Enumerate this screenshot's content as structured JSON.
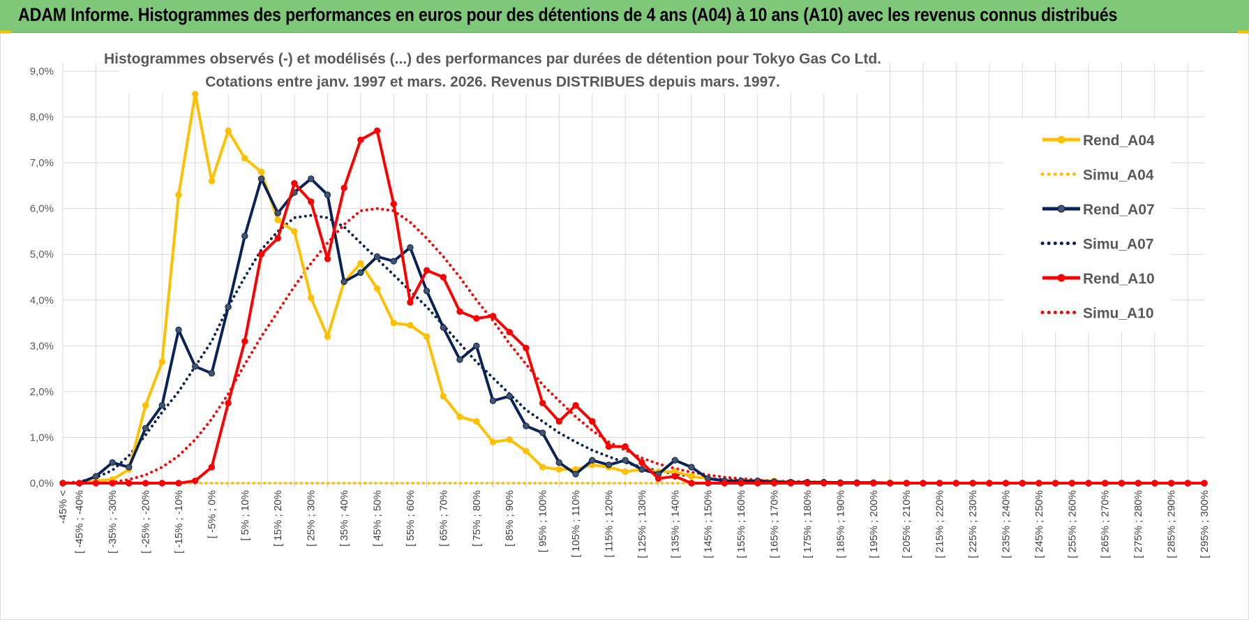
{
  "banner": {
    "title": "ADAM Informe. Histogrammes des performances en euros pour des détentions de 4 ans (A04) à 10 ans (A10) avec les revenus connus distribués"
  },
  "colors": {
    "banner_bg": "#7fc87a",
    "a04": "#ffc000",
    "a07": "#0a2356",
    "a10": "#ff0000",
    "grid": "#d9d9d9"
  },
  "chart_data": {
    "type": "line",
    "title": "Histogrammes observés (-) et modélisés (...) des performances par durées de détention pour Tokyo Gas Co Ltd.",
    "subtitle": "Cotations entre janv. 1997 et mars. 2026. Revenus DISTRIBUES depuis mars. 1997.",
    "xlabel": "",
    "ylabel": "",
    "ylim": [
      0,
      9
    ],
    "yticks": [
      "0,0%",
      "1,0%",
      "2,0%",
      "3,0%",
      "4,0%",
      "5,0%",
      "6,0%",
      "7,0%",
      "8,0%",
      "9,0%"
    ],
    "legend_position": "right",
    "grid": true,
    "categories": [
      "-45% <",
      "[ -45% ; -40%",
      "[ -40% ; -35%",
      "[ -35% ; -30%",
      "[ -30% ; -25%",
      "[ -25% ; -20%",
      "[ -20% ; -15%",
      "[ -15% ; -10%",
      "[ -10% ; -5%",
      "[ -5% ; 0%",
      "[ 0% ; 5%",
      "[ 5% ; 10%",
      "[ 10% ; 15%",
      "[ 15% ; 20%",
      "[ 20% ; 25%",
      "[ 25% ; 30%",
      "[ 30% ; 35%",
      "[ 35% ; 40%",
      "[ 40% ; 45%",
      "[ 45% ; 50%",
      "[ 50% ; 55%",
      "[ 55% ; 60%",
      "[ 60% ; 65%",
      "[ 65% ; 70%",
      "[ 70% ; 75%",
      "[ 75% ; 80%",
      "[ 80% ; 85%",
      "[ 85% ; 90%",
      "[ 90% ; 95%",
      "[ 95% ; 100%",
      "[ 100% ; 105%",
      "[ 105% ; 110%",
      "[ 110% ; 115%",
      "[ 115% ; 120%",
      "[ 120% ; 125%",
      "[ 125% ; 130%",
      "[ 130% ; 135%",
      "[ 135% ; 140%",
      "[ 140% ; 145%",
      "[ 145% ; 150%",
      "[ 150% ; 155%",
      "[ 155% ; 160%",
      "[ 160% ; 165%",
      "[ 165% ; 170%",
      "[ 170% ; 175%",
      "[ 175% ; 180%",
      "[ 180% ; 185%",
      "[ 185% ; 190%",
      "[ 190% ; 195%",
      "[ 195% ; 200%",
      "[ 200% ; 205%",
      "[ 205% ; 210%",
      "[ 210% ; 215%",
      "[ 215% ; 220%",
      "[ 220% ; 225%",
      "[ 225% ; 230%",
      "[ 230% ; 235%",
      "[ 235% ; 240%",
      "[ 240% ; 245%",
      "[ 245% ; 250%",
      "[ 250% ; 255%",
      "[ 255% ; 260%",
      "[ 260% ; 265%",
      "[ 265% ; 270%",
      "[ 270% ; 275%",
      "[ 275% ; 280%",
      "[ 280% ; 285%",
      "[ 285% ; 290%",
      "[ 290% ; 295%",
      "[ 295% ; 300%"
    ],
    "series": [
      {
        "name": "Rend_A04",
        "style": "solid",
        "color": "#ffc000",
        "values": [
          0,
          0,
          0.05,
          0.08,
          0.3,
          1.7,
          2.65,
          6.3,
          8.5,
          6.6,
          7.7,
          7.1,
          6.8,
          5.75,
          5.5,
          4.05,
          3.2,
          4.4,
          4.8,
          4.25,
          3.5,
          3.45,
          3.2,
          1.9,
          1.45,
          1.35,
          0.9,
          0.95,
          0.7,
          0.35,
          0.3,
          0.3,
          0.4,
          0.35,
          0.25,
          0.3,
          0.25,
          0.25,
          0.15,
          0.1,
          0.05,
          0.05,
          0.05,
          0.05,
          0.02,
          0.02,
          0.02,
          0.01,
          0.01,
          0.01,
          0.01,
          0,
          0,
          0,
          0,
          0,
          0,
          0,
          0,
          0,
          0,
          0,
          0,
          0,
          0,
          0,
          0,
          0,
          0,
          0
        ]
      },
      {
        "name": "Simu_A04",
        "style": "dotted",
        "color": "#ffc000",
        "values": [
          0,
          0,
          0,
          0,
          0,
          0,
          0,
          0,
          0,
          0,
          0,
          0,
          0,
          0,
          0,
          0,
          0,
          0,
          0,
          0,
          0,
          0,
          0,
          0,
          0,
          0,
          0,
          0,
          0,
          0,
          0,
          0,
          0,
          0,
          0,
          0,
          0,
          0,
          0,
          0,
          0,
          0,
          0,
          0,
          0,
          0,
          0,
          0,
          0,
          0,
          0,
          0,
          0,
          0,
          0,
          0,
          0,
          0,
          0,
          0,
          0,
          0,
          0,
          0,
          0,
          0,
          0,
          0,
          0,
          0
        ]
      },
      {
        "name": "Rend_A07",
        "style": "solid",
        "color": "#0a2356",
        "values": [
          0,
          0,
          0.15,
          0.45,
          0.35,
          1.2,
          1.7,
          3.35,
          2.55,
          2.4,
          3.85,
          5.4,
          6.65,
          5.9,
          6.35,
          6.65,
          6.3,
          4.4,
          4.6,
          4.95,
          4.85,
          5.15,
          4.2,
          3.4,
          2.7,
          3.0,
          1.8,
          1.9,
          1.25,
          1.1,
          0.45,
          0.2,
          0.5,
          0.4,
          0.5,
          0.3,
          0.2,
          0.5,
          0.35,
          0.1,
          0.05,
          0.05,
          0.05,
          0.03,
          0.02,
          0.02,
          0.02,
          0.01,
          0.01,
          0.01,
          0,
          0,
          0,
          0,
          0,
          0,
          0,
          0,
          0,
          0,
          0,
          0,
          0,
          0,
          0,
          0,
          0,
          0,
          0,
          0
        ]
      },
      {
        "name": "Simu_A07",
        "style": "dotted",
        "color": "#0a2356",
        "values": [
          0,
          0.03,
          0.12,
          0.28,
          0.6,
          1.05,
          1.55,
          2.0,
          2.55,
          3.1,
          3.85,
          4.5,
          5.1,
          5.5,
          5.8,
          5.85,
          5.8,
          5.6,
          5.25,
          4.9,
          4.55,
          4.2,
          3.85,
          3.45,
          3.05,
          2.65,
          2.3,
          1.95,
          1.6,
          1.35,
          1.1,
          0.9,
          0.72,
          0.58,
          0.45,
          0.35,
          0.27,
          0.2,
          0.15,
          0.1,
          0.08,
          0.06,
          0.04,
          0.03,
          0.02,
          0.02,
          0.01,
          0.01,
          0.01,
          0,
          0,
          0,
          0,
          0,
          0,
          0,
          0,
          0,
          0,
          0,
          0,
          0,
          0,
          0,
          0,
          0,
          0,
          0,
          0,
          0
        ]
      },
      {
        "name": "Rend_A10",
        "style": "solid",
        "color": "#ff0000",
        "values": [
          0,
          0,
          0,
          0,
          0,
          0,
          0,
          0,
          0.05,
          0.35,
          1.75,
          3.1,
          5.0,
          5.35,
          6.55,
          6.15,
          4.9,
          6.45,
          7.5,
          7.7,
          6.1,
          3.95,
          4.65,
          4.5,
          3.75,
          3.6,
          3.65,
          3.3,
          2.95,
          1.75,
          1.35,
          1.7,
          1.35,
          0.8,
          0.8,
          0.45,
          0.1,
          0.15,
          0,
          0,
          0,
          0,
          0,
          0,
          0,
          0,
          0,
          0,
          0,
          0,
          0,
          0,
          0,
          0,
          0,
          0,
          0,
          0,
          0,
          0,
          0,
          0,
          0,
          0,
          0,
          0,
          0,
          0,
          0,
          0
        ]
      },
      {
        "name": "Simu_A10",
        "style": "dotted",
        "color": "#ff0000",
        "values": [
          0,
          0,
          0,
          0.02,
          0.08,
          0.18,
          0.35,
          0.6,
          0.95,
          1.4,
          1.95,
          2.6,
          3.2,
          3.75,
          4.3,
          4.8,
          5.25,
          5.65,
          5.95,
          6.0,
          5.95,
          5.7,
          5.35,
          4.95,
          4.5,
          4.0,
          3.55,
          3.05,
          2.6,
          2.15,
          1.8,
          1.45,
          1.15,
          0.9,
          0.72,
          0.55,
          0.42,
          0.32,
          0.24,
          0.18,
          0.13,
          0.1,
          0.07,
          0.05,
          0.04,
          0.03,
          0.02,
          0.01,
          0.01,
          0.01,
          0,
          0,
          0,
          0,
          0,
          0,
          0,
          0,
          0,
          0,
          0,
          0,
          0,
          0,
          0,
          0,
          0,
          0,
          0,
          0
        ]
      }
    ]
  }
}
